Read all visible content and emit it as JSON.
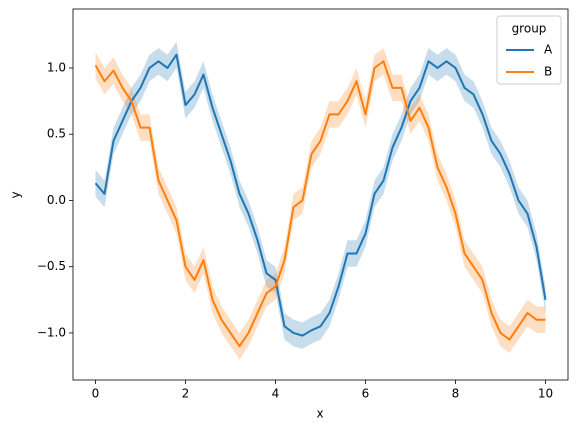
{
  "chart_data": {
    "type": "line",
    "x_label": "x",
    "y_label": "y",
    "x": [
      0,
      0.2,
      0.4,
      0.6,
      0.8,
      1.0,
      1.2,
      1.4,
      1.6,
      1.8,
      2.0,
      2.2,
      2.4,
      2.6,
      2.8,
      3.0,
      3.2,
      3.4,
      3.6,
      3.8,
      4.0,
      4.2,
      4.4,
      4.6,
      4.8,
      5.0,
      5.2,
      5.4,
      5.6,
      5.8,
      6.0,
      6.2,
      6.4,
      6.6,
      6.8,
      7.0,
      7.2,
      7.4,
      7.6,
      7.8,
      8.0,
      8.2,
      8.4,
      8.6,
      8.8,
      9.0,
      9.2,
      9.4,
      9.6,
      9.8,
      10.0
    ],
    "series": [
      {
        "name": "A",
        "color": "#1f77b4",
        "values": [
          0.13,
          0.05,
          0.45,
          0.6,
          0.75,
          0.85,
          1.0,
          1.05,
          1.0,
          1.1,
          0.72,
          0.8,
          0.95,
          0.7,
          0.5,
          0.3,
          0.05,
          -0.1,
          -0.3,
          -0.55,
          -0.6,
          -0.95,
          -1.0,
          -1.02,
          -0.98,
          -0.95,
          -0.85,
          -0.65,
          -0.4,
          -0.4,
          -0.25,
          0.05,
          0.15,
          0.4,
          0.55,
          0.75,
          0.85,
          1.05,
          1.0,
          1.05,
          1.0,
          0.85,
          0.8,
          0.65,
          0.45,
          0.35,
          0.2,
          0.0,
          -0.1,
          -0.35,
          -0.75
        ],
        "lower": [
          0.03,
          -0.05,
          0.35,
          0.5,
          0.65,
          0.75,
          0.9,
          0.95,
          0.9,
          1.0,
          0.62,
          0.7,
          0.85,
          0.6,
          0.4,
          0.2,
          -0.05,
          -0.2,
          -0.4,
          -0.65,
          -0.7,
          -1.05,
          -1.1,
          -1.12,
          -1.08,
          -1.05,
          -0.95,
          -0.75,
          -0.5,
          -0.5,
          -0.35,
          -0.05,
          0.05,
          0.3,
          0.45,
          0.65,
          0.75,
          0.95,
          0.9,
          0.95,
          0.9,
          0.75,
          0.7,
          0.55,
          0.35,
          0.25,
          0.1,
          -0.1,
          -0.2,
          -0.45,
          -0.85
        ],
        "upper": [
          0.23,
          0.15,
          0.55,
          0.7,
          0.85,
          0.95,
          1.1,
          1.15,
          1.1,
          1.2,
          0.82,
          0.9,
          1.05,
          0.8,
          0.6,
          0.4,
          0.15,
          0.0,
          -0.2,
          -0.45,
          -0.5,
          -0.85,
          -0.9,
          -0.92,
          -0.88,
          -0.85,
          -0.75,
          -0.55,
          -0.3,
          -0.3,
          -0.15,
          0.15,
          0.25,
          0.5,
          0.65,
          0.85,
          0.95,
          1.15,
          1.1,
          1.15,
          1.1,
          0.95,
          0.9,
          0.75,
          0.55,
          0.45,
          0.3,
          0.1,
          0.0,
          -0.25,
          -0.65
        ]
      },
      {
        "name": "B",
        "color": "#ff7f0e",
        "values": [
          1.02,
          0.9,
          0.98,
          0.85,
          0.75,
          0.55,
          0.55,
          0.15,
          0.0,
          -0.15,
          -0.5,
          -0.6,
          -0.45,
          -0.75,
          -0.9,
          -1.0,
          -1.1,
          -1.0,
          -0.85,
          -0.7,
          -0.65,
          -0.45,
          -0.05,
          0.0,
          0.35,
          0.45,
          0.65,
          0.65,
          0.75,
          0.9,
          0.65,
          1.0,
          1.05,
          0.85,
          0.85,
          0.6,
          0.7,
          0.55,
          0.25,
          0.1,
          -0.1,
          -0.4,
          -0.5,
          -0.6,
          -0.85,
          -1.0,
          -1.05,
          -0.95,
          -0.85,
          -0.9,
          -0.9
        ],
        "lower": [
          0.92,
          0.8,
          0.88,
          0.75,
          0.65,
          0.45,
          0.45,
          0.05,
          -0.1,
          -0.25,
          -0.6,
          -0.7,
          -0.55,
          -0.85,
          -1.0,
          -1.1,
          -1.2,
          -1.1,
          -0.95,
          -0.8,
          -0.75,
          -0.55,
          -0.15,
          -0.1,
          0.25,
          0.35,
          0.55,
          0.55,
          0.65,
          0.8,
          0.55,
          0.9,
          0.95,
          0.75,
          0.75,
          0.5,
          0.6,
          0.45,
          0.15,
          0.0,
          -0.2,
          -0.5,
          -0.6,
          -0.7,
          -0.95,
          -1.1,
          -1.15,
          -1.05,
          -0.95,
          -1.0,
          -1.0
        ],
        "upper": [
          1.12,
          1.0,
          1.08,
          0.95,
          0.85,
          0.65,
          0.65,
          0.25,
          0.1,
          -0.05,
          -0.4,
          -0.5,
          -0.35,
          -0.65,
          -0.8,
          -0.9,
          -1.0,
          -0.9,
          -0.75,
          -0.6,
          -0.55,
          -0.35,
          0.05,
          0.1,
          0.45,
          0.55,
          0.75,
          0.75,
          0.85,
          1.0,
          0.75,
          1.1,
          1.15,
          0.95,
          0.95,
          0.7,
          0.8,
          0.65,
          0.35,
          0.2,
          0.0,
          -0.3,
          -0.4,
          -0.5,
          -0.75,
          -0.9,
          -0.95,
          -0.85,
          -0.75,
          -0.8,
          -0.8
        ]
      }
    ],
    "xlim": [
      -0.5,
      10.5
    ],
    "ylim": [
      -1.355,
      1.445
    ],
    "xticks": [
      0,
      2,
      4,
      6,
      8,
      10
    ],
    "yticks": [
      {
        "value": -1.0,
        "label": "−1.0"
      },
      {
        "value": -0.5,
        "label": "−0.5"
      },
      {
        "value": 0.0,
        "label": "0.0"
      },
      {
        "value": 0.5,
        "label": "0.5"
      },
      {
        "value": 1.0,
        "label": "1.0"
      }
    ],
    "legend_title": "group",
    "legend_position": "upper right",
    "grid": false
  }
}
